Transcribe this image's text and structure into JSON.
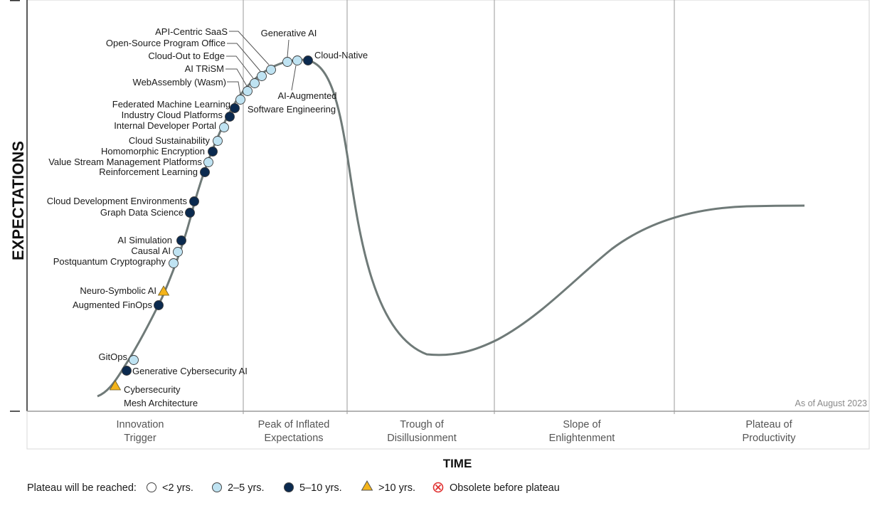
{
  "y_axis_title": "EXPECTATIONS",
  "x_axis_title": "TIME",
  "as_of": "As of August 2023",
  "phases": [
    {
      "line1": "Innovation",
      "line2": "Trigger"
    },
    {
      "line1": "Peak of Inflated",
      "line2": "Expectations"
    },
    {
      "line1": "Trough of",
      "line2": "Disillusionment"
    },
    {
      "line1": "Slope of",
      "line2": "Enlightenment"
    },
    {
      "line1": "Plateau of",
      "line2": "Productivity"
    }
  ],
  "legend": {
    "title": "Plateau will be reached:",
    "items": [
      {
        "key": "lt2",
        "label": "<2 yrs."
      },
      {
        "key": "2to5",
        "label": "2–5 yrs."
      },
      {
        "key": "5to10",
        "label": "5–10 yrs."
      },
      {
        "key": "gt10",
        "label": ">10 yrs."
      },
      {
        "key": "obsolete",
        "label": "Obsolete before plateau"
      }
    ]
  },
  "colors": {
    "curve": "#6f7a78",
    "lt2": "#ffffff",
    "2to5": "#bfe3f2",
    "5to10": "#0b2a4f",
    "gt10": "#f4b41a",
    "obsolete": "#e03030",
    "grid": "#9a9a9a"
  },
  "technologies": [
    {
      "label": [
        "Cybersecurity",
        "Mesh Architecture"
      ],
      "category": "gt10"
    },
    {
      "label": [
        "Generative Cybersecurity AI"
      ],
      "category": "5to10"
    },
    {
      "label": [
        "GitOps"
      ],
      "category": "2to5"
    },
    {
      "label": [
        "Augmented FinOps"
      ],
      "category": "5to10"
    },
    {
      "label": [
        "Neuro-Symbolic AI"
      ],
      "category": "gt10"
    },
    {
      "label": [
        "Postquantum Cryptography"
      ],
      "category": "2to5"
    },
    {
      "label": [
        "Causal AI"
      ],
      "category": "2to5"
    },
    {
      "label": [
        "AI Simulation"
      ],
      "category": "5to10"
    },
    {
      "label": [
        "Graph Data Science"
      ],
      "category": "5to10"
    },
    {
      "label": [
        "Cloud Development Environments"
      ],
      "category": "5to10"
    },
    {
      "label": [
        "Reinforcement Learning"
      ],
      "category": "5to10"
    },
    {
      "label": [
        "Value Stream Management Platforms"
      ],
      "category": "2to5"
    },
    {
      "label": [
        "Homomorphic Encryption"
      ],
      "category": "5to10"
    },
    {
      "label": [
        "Cloud Sustainability"
      ],
      "category": "2to5"
    },
    {
      "label": [
        "Internal Developer Portal"
      ],
      "category": "2to5"
    },
    {
      "label": [
        "Industry Cloud Platforms"
      ],
      "category": "5to10"
    },
    {
      "label": [
        "Federated Machine Learning"
      ],
      "category": "5to10"
    },
    {
      "label": [
        "WebAssembly (Wasm)"
      ],
      "category": "2to5"
    },
    {
      "label": [
        "AI TRiSM"
      ],
      "category": "2to5"
    },
    {
      "label": [
        "Cloud-Out to Edge"
      ],
      "category": "2to5"
    },
    {
      "label": [
        "Open-Source Program Office"
      ],
      "category": "2to5"
    },
    {
      "label": [
        "API-Centric SaaS"
      ],
      "category": "2to5"
    },
    {
      "label": [
        "Generative AI"
      ],
      "category": "2to5"
    },
    {
      "label": [
        "AI-Augmented",
        "Software Engineering"
      ],
      "category": "2to5"
    },
    {
      "label": [
        "Cloud-Native"
      ],
      "category": "5to10"
    }
  ]
}
